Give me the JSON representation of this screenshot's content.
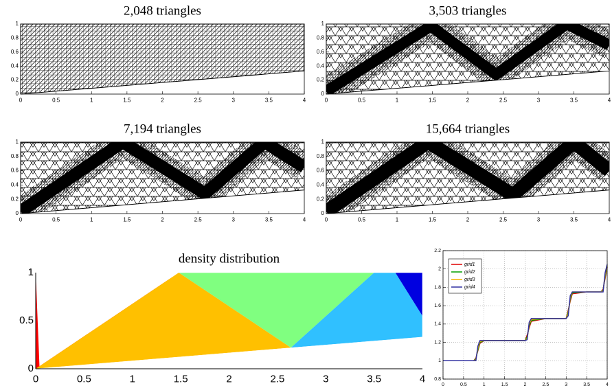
{
  "chart_data": [
    {
      "type": "mesh",
      "title": "2,048 triangles",
      "xlim": [
        0,
        4
      ],
      "ylim": [
        0,
        1
      ],
      "xticks": [
        0,
        0.5,
        1,
        1.5,
        2,
        2.5,
        3,
        3.5,
        4
      ],
      "yticks": [
        0,
        0.2,
        0.4,
        0.6,
        0.8,
        1
      ]
    },
    {
      "type": "mesh",
      "title": "3,503 triangles",
      "xlim": [
        0,
        4
      ],
      "ylim": [
        0,
        1
      ],
      "xticks": [
        0,
        0.5,
        1,
        1.5,
        2,
        2.5,
        3,
        3.5,
        4
      ],
      "yticks": [
        0,
        0.2,
        0.4,
        0.6,
        0.8,
        1
      ]
    },
    {
      "type": "mesh",
      "title": "7,194 triangles",
      "xlim": [
        0,
        4
      ],
      "ylim": [
        0,
        1
      ],
      "xticks": [
        0,
        0.5,
        1,
        1.5,
        2,
        2.5,
        3,
        3.5,
        4
      ],
      "yticks": [
        0,
        0.2,
        0.4,
        0.6,
        0.8,
        1
      ]
    },
    {
      "type": "mesh",
      "title": "15,664 triangles",
      "xlim": [
        0,
        4
      ],
      "ylim": [
        0,
        1
      ],
      "xticks": [
        0,
        0.5,
        1,
        1.5,
        2,
        2.5,
        3,
        3.5,
        4
      ],
      "yticks": [
        0,
        0.2,
        0.4,
        0.6,
        0.8,
        1
      ]
    },
    {
      "type": "density",
      "title": "density distribution",
      "xlim": [
        0,
        4
      ],
      "ylim": [
        0,
        1
      ],
      "xticks": [
        0,
        0.5,
        1,
        1.5,
        2,
        2.5,
        3,
        3.5,
        4
      ],
      "yticks": [
        0,
        0.5,
        1
      ]
    },
    {
      "type": "line",
      "xlim": [
        0,
        4
      ],
      "ylim": [
        0.8,
        2.2
      ],
      "xticks": [
        0,
        0.5,
        1,
        1.5,
        2,
        2.5,
        3,
        3.5,
        4
      ],
      "yticks": [
        0.8,
        1,
        1.2,
        1.4,
        1.6,
        1.8,
        2,
        2.2
      ],
      "grid": true,
      "legend": "upper left",
      "x": [
        0,
        0.5,
        0.75,
        0.8,
        0.85,
        0.9,
        1,
        1.5,
        2,
        2.05,
        2.1,
        2.15,
        2.5,
        3,
        3.05,
        3.1,
        3.15,
        3.5,
        3.85,
        3.9,
        3.95,
        4
      ],
      "series": [
        {
          "name": "grid1",
          "color": "#e00000",
          "values": [
            1,
            1,
            1.0,
            1.03,
            1.11,
            1.19,
            1.22,
            1.22,
            1.22,
            1.28,
            1.36,
            1.43,
            1.46,
            1.46,
            1.55,
            1.65,
            1.73,
            1.75,
            1.75,
            1.78,
            1.9,
            2.02
          ]
        },
        {
          "name": "grid2",
          "color": "#00a000",
          "values": [
            1,
            1,
            1.0,
            1.02,
            1.12,
            1.2,
            1.22,
            1.22,
            1.22,
            1.26,
            1.38,
            1.44,
            1.46,
            1.46,
            1.53,
            1.67,
            1.74,
            1.75,
            1.75,
            1.77,
            1.92,
            2.03
          ]
        },
        {
          "name": "grid3",
          "color": "#f0b000",
          "values": [
            1,
            1,
            1.0,
            1.01,
            1.14,
            1.21,
            1.22,
            1.22,
            1.22,
            1.24,
            1.4,
            1.45,
            1.46,
            1.46,
            1.51,
            1.69,
            1.75,
            1.75,
            1.75,
            1.76,
            1.94,
            2.04
          ]
        },
        {
          "name": "grid4",
          "color": "#3030a0",
          "values": [
            1,
            1,
            1.0,
            1.0,
            1.16,
            1.22,
            1.22,
            1.22,
            1.22,
            1.23,
            1.42,
            1.46,
            1.46,
            1.46,
            1.49,
            1.71,
            1.75,
            1.75,
            1.75,
            1.75,
            1.96,
            2.05
          ]
        }
      ]
    }
  ]
}
